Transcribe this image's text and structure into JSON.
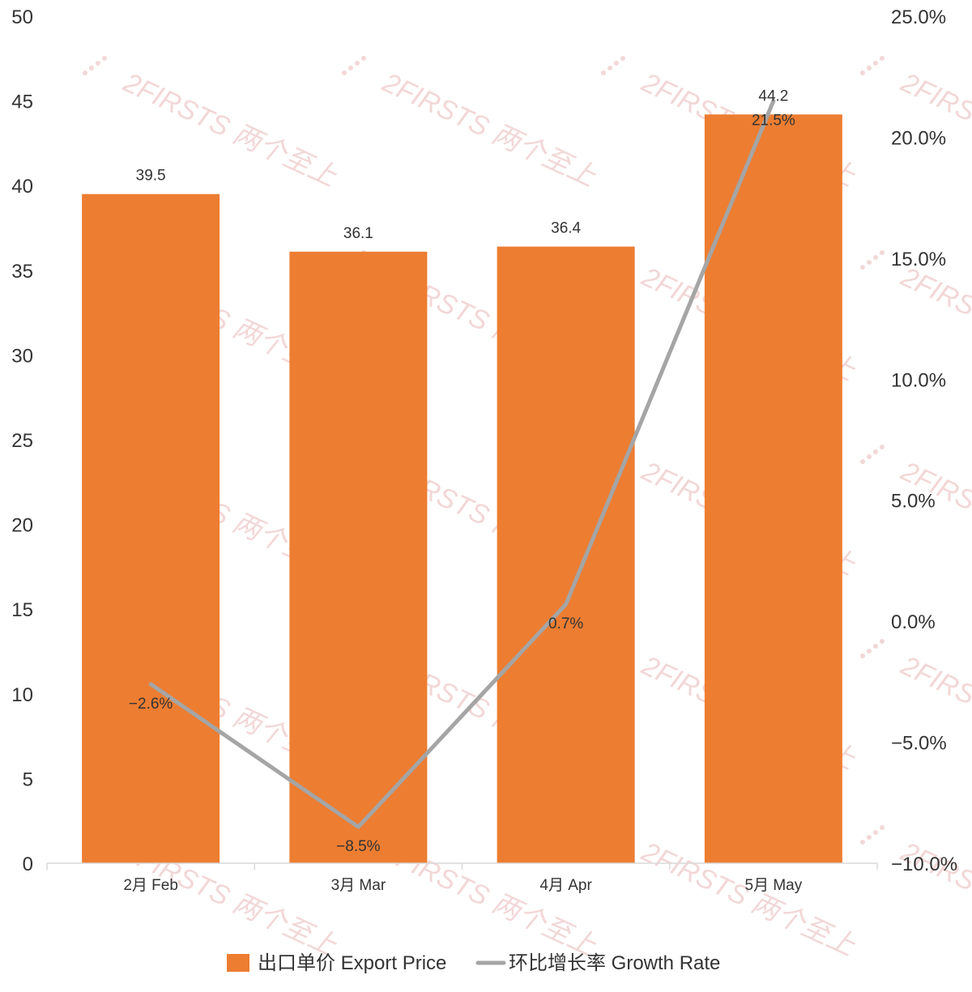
{
  "chart_data": {
    "type": "bar",
    "categories": [
      "2月 Feb",
      "3月 Mar",
      "4月 Apr",
      "5月 May"
    ],
    "series": [
      {
        "name": "出口单价 Export Price",
        "chart_type": "bar",
        "axis": "left",
        "color": "#ed7d31",
        "values": [
          39.5,
          36.1,
          36.4,
          44.2
        ],
        "labels": [
          "39.5",
          "36.1",
          "36.4",
          "44.2"
        ]
      },
      {
        "name": "环比增长率 Growth Rate",
        "chart_type": "line",
        "axis": "right",
        "color": "#a5a5a5",
        "values": [
          -2.6,
          -8.5,
          0.7,
          21.5
        ],
        "labels": [
          "−2.6%",
          "−8.5%",
          "0.7%",
          "21.5%"
        ]
      }
    ],
    "y_left": {
      "ylim": [
        0,
        50
      ],
      "ticks": [
        0,
        5,
        10,
        15,
        20,
        25,
        30,
        35,
        40,
        45,
        50
      ],
      "tick_labels": [
        "0",
        "5",
        "10",
        "15",
        "20",
        "25",
        "30",
        "35",
        "40",
        "45",
        "50"
      ]
    },
    "y_right": {
      "ylim": [
        -10,
        25
      ],
      "ticks": [
        -10,
        -5,
        0,
        5,
        10,
        15,
        20,
        25
      ],
      "tick_labels": [
        "−10.0%",
        "−5.0%",
        "0.0%",
        "5.0%",
        "10.0%",
        "15.0%",
        "20.0%",
        "25.0%"
      ]
    },
    "grid": false,
    "legend_position": "bottom-center"
  },
  "watermark": {
    "text": "2FIRSTS 两个至上",
    "color": "#e8b8b8"
  }
}
